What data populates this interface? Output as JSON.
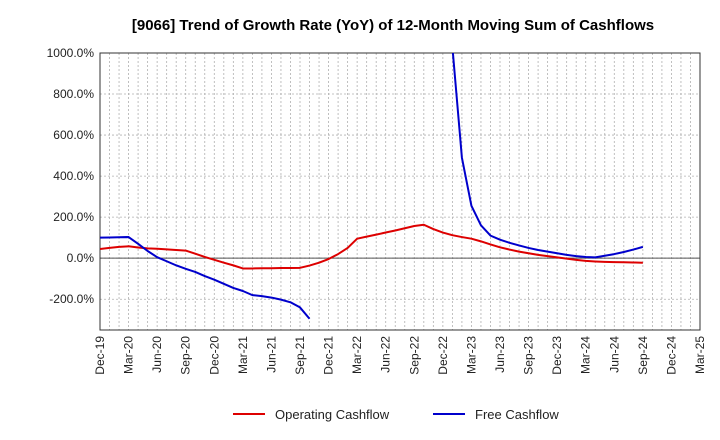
{
  "chart_data": {
    "type": "line",
    "title": "[9066]  Trend of Growth Rate (YoY) of 12-Month Moving Sum of Cashflows",
    "xlabel": "",
    "ylabel": "",
    "ylim": [
      -350,
      1000
    ],
    "y_ticks": [
      1000,
      800,
      600,
      400,
      200,
      0,
      -200
    ],
    "y_tick_labels": [
      "1000.0%",
      "800.0%",
      "600.0%",
      "400.0%",
      "200.0%",
      "0.0%",
      "-200.0%"
    ],
    "x_tick_labels": [
      "Dec-19",
      "Mar-20",
      "Jun-20",
      "Sep-20",
      "Dec-20",
      "Mar-21",
      "Jun-21",
      "Sep-21",
      "Dec-21",
      "Mar-22",
      "Jun-22",
      "Sep-22",
      "Dec-22",
      "Mar-23",
      "Jun-23",
      "Sep-23",
      "Dec-23",
      "Mar-24",
      "Jun-24",
      "Sep-24",
      "Dec-24",
      "Mar-25"
    ],
    "x": [
      "Dec-19",
      "Jan-20",
      "Feb-20",
      "Mar-20",
      "Apr-20",
      "May-20",
      "Jun-20",
      "Jul-20",
      "Aug-20",
      "Sep-20",
      "Oct-20",
      "Nov-20",
      "Dec-20",
      "Jan-21",
      "Feb-21",
      "Mar-21",
      "Apr-21",
      "May-21",
      "Jun-21",
      "Jul-21",
      "Aug-21",
      "Sep-21",
      "Oct-21",
      "Nov-21",
      "Dec-21",
      "Jan-22",
      "Feb-22",
      "Mar-22",
      "Apr-22",
      "May-22",
      "Jun-22",
      "Jul-22",
      "Aug-22",
      "Sep-22",
      "Oct-22",
      "Nov-22",
      "Dec-22",
      "Jan-23",
      "Feb-23",
      "Mar-23",
      "Apr-23",
      "May-23",
      "Jun-23",
      "Jul-23",
      "Aug-23",
      "Sep-23",
      "Oct-23",
      "Nov-23",
      "Dec-23",
      "Jan-24",
      "Feb-24",
      "Mar-24",
      "Apr-24",
      "May-24",
      "Jun-24",
      "Jul-24",
      "Aug-24",
      "Sep-24"
    ],
    "series": [
      {
        "name": "Operating Cashflow",
        "color": "#dd0000",
        "values": [
          45,
          50,
          55,
          58,
          52,
          48,
          46,
          43,
          40,
          37,
          22,
          6,
          -8,
          -22,
          -35,
          -50,
          -50,
          -49,
          -49,
          -48,
          -48,
          -47,
          -36,
          -22,
          -4,
          20,
          50,
          95,
          105,
          115,
          125,
          135,
          146,
          157,
          163,
          142,
          125,
          112,
          103,
          95,
          82,
          67,
          53,
          42,
          32,
          24,
          16,
          10,
          4,
          -2,
          -8,
          -13,
          -16,
          -18,
          -19,
          -20,
          -21,
          -22
        ]
      },
      {
        "name": "Free Cashflow",
        "color": "#0000cc",
        "values": [
          100,
          101,
          102,
          103,
          70,
          35,
          5,
          -15,
          -35,
          -52,
          -67,
          -87,
          -105,
          -125,
          -145,
          -160,
          -180,
          -185,
          -192,
          -202,
          -215,
          -240,
          -295,
          null,
          null,
          null,
          null,
          null,
          null,
          null,
          null,
          null,
          null,
          null,
          null,
          null,
          null,
          1030,
          490,
          255,
          160,
          110,
          90,
          75,
          62,
          50,
          40,
          32,
          24,
          16,
          10,
          6,
          4,
          12,
          20,
          30,
          42,
          55
        ]
      }
    ],
    "legend_position": "bottom-center",
    "grid": true
  }
}
